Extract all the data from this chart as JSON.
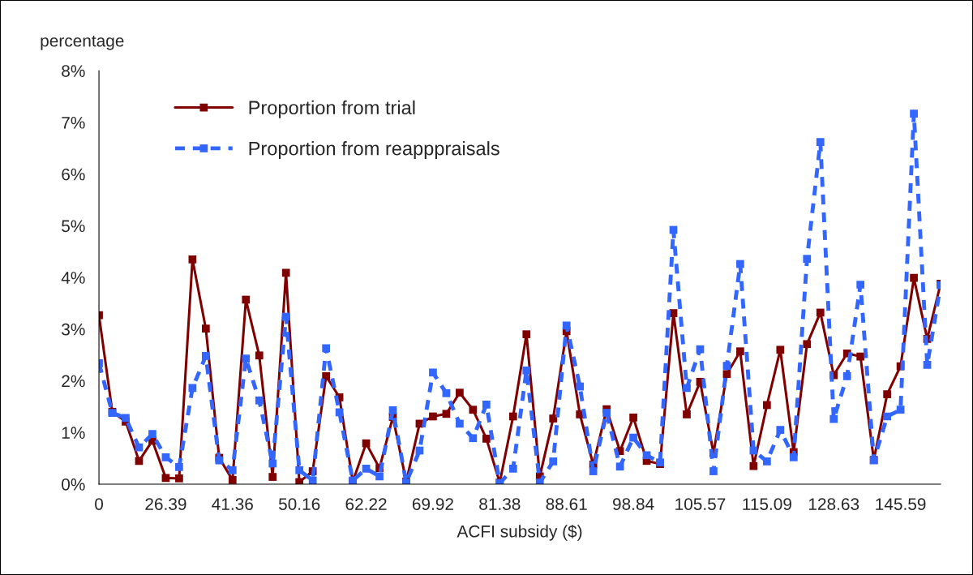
{
  "chart_data": {
    "type": "line",
    "ylabel": "percentage",
    "xlabel": "ACFI subsidy ($)",
    "categories": [
      "0",
      null,
      null,
      null,
      null,
      "26.39",
      null,
      null,
      null,
      null,
      "41.36",
      null,
      null,
      null,
      null,
      "50.16",
      null,
      null,
      null,
      null,
      "62.22",
      null,
      null,
      null,
      null,
      "69.92",
      null,
      null,
      null,
      null,
      "81.38",
      null,
      null,
      null,
      null,
      "88.61",
      null,
      null,
      null,
      null,
      "98.84",
      null,
      null,
      null,
      null,
      "105.57",
      null,
      null,
      null,
      null,
      "115.09",
      null,
      null,
      null,
      null,
      "128.63",
      null,
      null,
      null,
      null,
      "145.59",
      null,
      null,
      null
    ],
    "series": [
      {
        "name": "Proportion from trial",
        "color": "#800000",
        "line_style": "solid",
        "values": [
          3.27,
          1.4,
          1.21,
          0.45,
          0.84,
          0.12,
          0.11,
          4.35,
          3.01,
          0.51,
          0.08,
          3.57,
          2.49,
          0.14,
          4.09,
          0.04,
          0.25,
          2.09,
          1.68,
          0.05,
          0.79,
          0.31,
          1.3,
          0.05,
          1.17,
          1.31,
          1.36,
          1.77,
          1.44,
          0.88,
          0.03,
          1.31,
          2.9,
          0.15,
          1.27,
          2.96,
          1.35,
          0.38,
          1.45,
          0.64,
          1.29,
          0.45,
          0.39,
          3.31,
          1.35,
          1.98,
          0.6,
          2.13,
          2.57,
          0.35,
          1.53,
          2.6,
          0.62,
          2.71,
          3.32,
          2.11,
          2.53,
          2.47,
          0.47,
          1.74,
          2.28,
          3.99,
          2.81,
          3.88
        ]
      },
      {
        "name": "Proportion from reapppraisals",
        "color": "#3366ff",
        "line_style": "dashed",
        "values": [
          2.34,
          1.38,
          1.28,
          0.71,
          0.97,
          0.52,
          0.33,
          1.86,
          2.48,
          0.46,
          0.27,
          2.43,
          1.62,
          0.4,
          3.24,
          0.27,
          0.07,
          2.63,
          1.39,
          0.07,
          0.3,
          0.15,
          1.43,
          0.03,
          0.65,
          2.16,
          1.76,
          1.17,
          0.89,
          1.54,
          0.02,
          0.3,
          2.2,
          0.03,
          0.44,
          3.07,
          1.89,
          0.25,
          1.38,
          0.34,
          0.9,
          0.56,
          0.42,
          4.92,
          1.86,
          2.61,
          0.25,
          2.29,
          4.26,
          0.65,
          0.44,
          1.05,
          0.52,
          4.36,
          6.62,
          1.26,
          2.09,
          3.86,
          0.46,
          1.31,
          1.44,
          7.17,
          2.31,
          3.85
        ]
      }
    ],
    "ylim": [
      0,
      8
    ],
    "yticks": [
      {
        "value": 0,
        "label": "0%"
      },
      {
        "value": 1,
        "label": "1%"
      },
      {
        "value": 2,
        "label": "2%"
      },
      {
        "value": 3,
        "label": "3%"
      },
      {
        "value": 4,
        "label": "4%"
      },
      {
        "value": 5,
        "label": "5%"
      },
      {
        "value": 6,
        "label": "6%"
      },
      {
        "value": 7,
        "label": "7%"
      },
      {
        "value": 8,
        "label": "8%"
      }
    ],
    "marker": "square",
    "grid": false,
    "legend": "top left"
  }
}
